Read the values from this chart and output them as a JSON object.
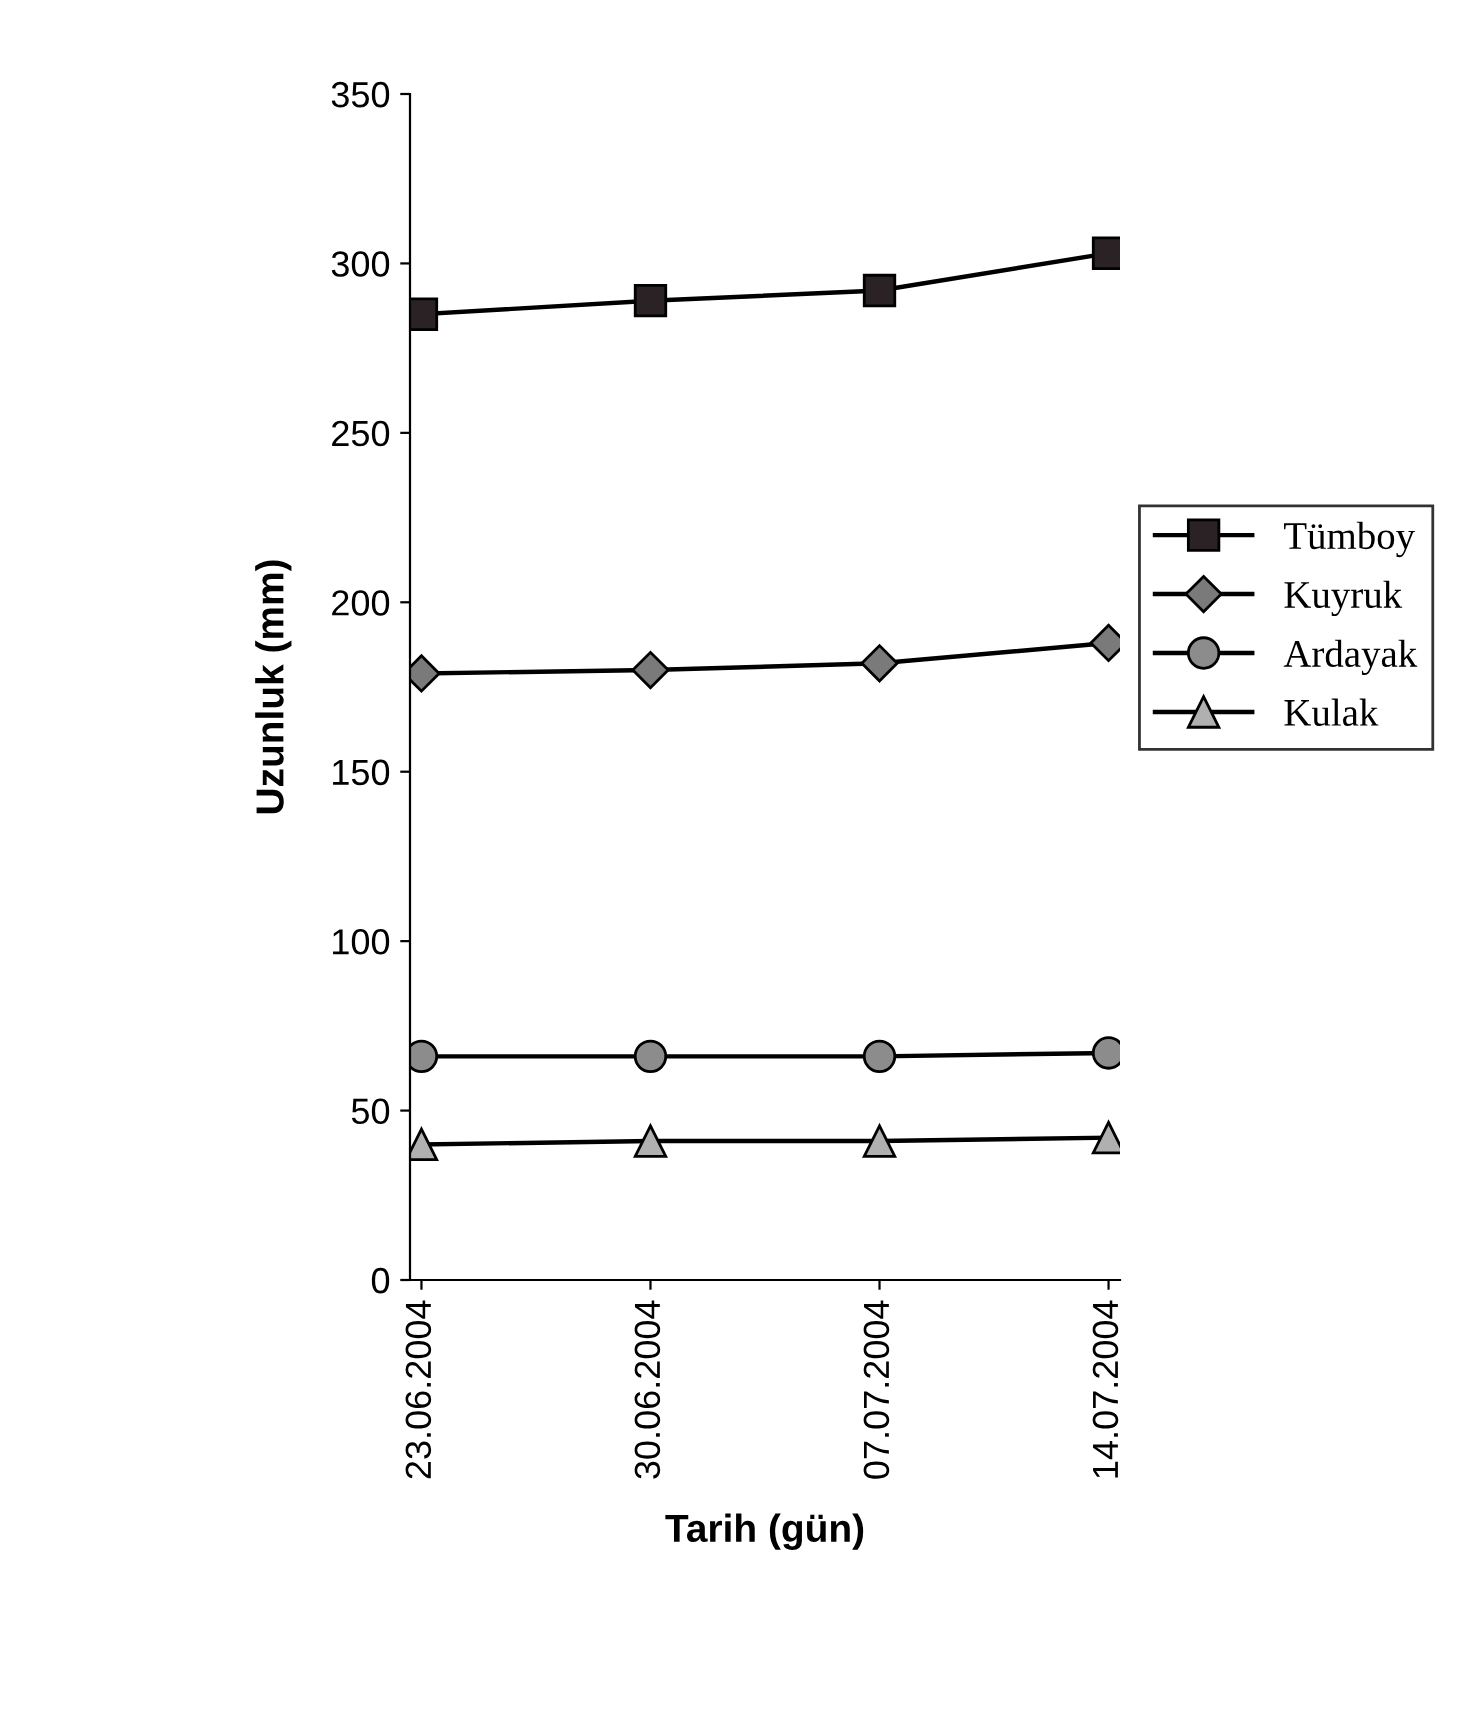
{
  "chart_data": {
    "type": "line",
    "xlabel": "Tarih (gün)",
    "ylabel": "Uzunluk (mm)",
    "categories": [
      "23.06.2004",
      "30.06.2004",
      "07.07.2004",
      "14.07.2004"
    ],
    "ylim": [
      0,
      350
    ],
    "yticks": [
      0,
      50,
      100,
      150,
      200,
      250,
      300,
      350
    ],
    "grid": false,
    "legend": "right",
    "series": [
      {
        "name": "Tümboy",
        "color": "#2a2224",
        "marker": "square",
        "values": [
          285,
          289,
          292,
          303
        ]
      },
      {
        "name": "Kuyruk",
        "color": "#7a7a7a",
        "marker": "diamond",
        "values": [
          179,
          180,
          182,
          188
        ]
      },
      {
        "name": "Ardayak",
        "color": "#8c8c8c",
        "marker": "circle",
        "values": [
          66,
          66,
          66,
          67
        ]
      },
      {
        "name": "Kulak",
        "color": "#b0b0b0",
        "marker": "triangle",
        "values": [
          40,
          41,
          41,
          42
        ]
      }
    ]
  }
}
